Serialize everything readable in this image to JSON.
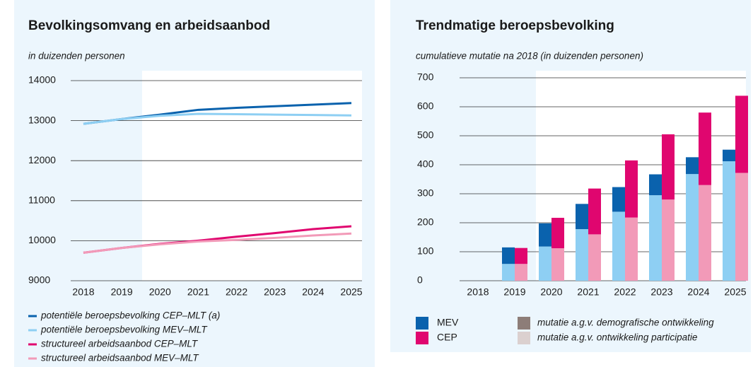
{
  "chart_data": [
    {
      "type": "line",
      "title": "Bevolkingsomvang en arbeidsaanbod",
      "subtitle": "in duizenden personen",
      "categories": [
        "2018",
        "2019",
        "2020",
        "2021",
        "2022",
        "2023",
        "2024",
        "2025"
      ],
      "series": [
        {
          "name": "potentiële beroepsbevolking CEP–MLT (a)",
          "color": "#0a62ad",
          "values": [
            12920,
            13040,
            13150,
            13270,
            13320,
            13360,
            13400,
            13440
          ]
        },
        {
          "name": "potentiële beroepsbevolking MEV–MLT",
          "color": "#8ecff3",
          "values": [
            12920,
            13040,
            13120,
            13170,
            13160,
            13150,
            13140,
            13130
          ]
        },
        {
          "name": "structureel arbeidsaanbod CEP–MLT",
          "color": "#e0066f",
          "values": [
            9700,
            9820,
            9920,
            10000,
            10100,
            10190,
            10290,
            10360
          ]
        },
        {
          "name": "structureel arbeidsaanbod MEV–MLT",
          "color": "#f29ab8",
          "values": [
            9700,
            9820,
            9910,
            9980,
            10020,
            10070,
            10130,
            10180
          ]
        }
      ],
      "ylim": [
        9000,
        14000
      ],
      "yticks": [
        9000,
        10000,
        11000,
        12000,
        13000,
        14000
      ],
      "grid": true
    },
    {
      "type": "stacked_grouped_bar",
      "title": "Trendmatige beroepsbevolking",
      "subtitle": "cumulatieve mutatie na 2018 (in duizenden personen)",
      "categories": [
        "2018",
        "2019",
        "2020",
        "2021",
        "2022",
        "2023",
        "2024",
        "2025"
      ],
      "stack": [
        {
          "name": "mutatie a.g.v. ontwikkeling participatie",
          "color": "#dbd0cf"
        },
        {
          "name": "mutatie a.g.v. demografische ontwikkeling",
          "color": "#8d7d78"
        }
      ],
      "groups": [
        {
          "name": "MEV",
          "colors": [
            "#8ecff3",
            "#0a62ad"
          ],
          "values": [
            [
              0,
              58,
              118,
              178,
              238,
              295,
              368,
              412
            ],
            [
              0,
              57,
              80,
              87,
              85,
              72,
              58,
              40
            ]
          ]
        },
        {
          "name": "CEP",
          "colors": [
            "#f29ab8",
            "#e0066f"
          ],
          "values": [
            [
              0,
              58,
              112,
              160,
              218,
              280,
              330,
              372
            ],
            [
              0,
              55,
              105,
              158,
              197,
              225,
              250,
              266
            ]
          ]
        }
      ],
      "ylim": [
        0,
        700
      ],
      "yticks": [
        0,
        100,
        200,
        300,
        400,
        500,
        600,
        700
      ],
      "grid": true
    }
  ]
}
